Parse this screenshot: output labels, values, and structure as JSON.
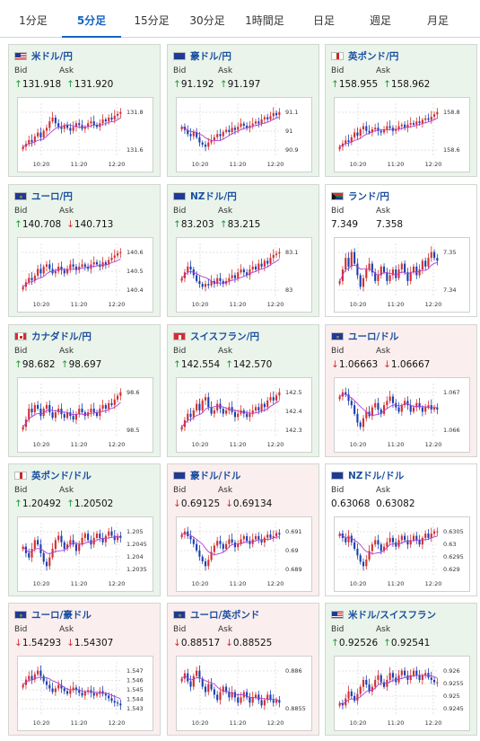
{
  "tabs": [
    "1分足",
    "5分足",
    "15分足",
    "30分足",
    "1時間足",
    "日足",
    "週足",
    "月足"
  ],
  "active_tab": 1,
  "labels": {
    "bid": "Bid",
    "ask": "Ask"
  },
  "colors": {
    "up_bg": "#eaf4ea",
    "down_bg": "#fbeeee",
    "up_arrow": "#1e9a3a",
    "down_arrow": "#d32f2f",
    "candle_up": "#d32f2f",
    "candle_down": "#1a3fb0",
    "ma": "#b23bd6"
  },
  "pairs": [
    {
      "name": "米ドル/円",
      "flag": "us",
      "trend": "up",
      "bid": "131.918",
      "ask": "131.920",
      "bid_dir": "up",
      "ask_dir": "up",
      "chart_data": {
        "type": "candlestick",
        "x_ticks": [
          "10:20",
          "11:20",
          "12:20"
        ],
        "y_ticks": [
          "131.8",
          "131.6"
        ],
        "closes": [
          131.55,
          131.58,
          131.62,
          131.6,
          131.66,
          131.7,
          131.65,
          131.72,
          131.75,
          131.82,
          131.86,
          131.8,
          131.76,
          131.74,
          131.78,
          131.75,
          131.72,
          131.76,
          131.8,
          131.78,
          131.74,
          131.76,
          131.8,
          131.82,
          131.78,
          131.76,
          131.8,
          131.84,
          131.82,
          131.86,
          131.84,
          131.88,
          131.9,
          131.92
        ]
      }
    },
    {
      "name": "豪ドル/円",
      "flag": "au",
      "trend": "up",
      "bid": "91.192",
      "ask": "91.197",
      "bid_dir": "up",
      "ask_dir": "up",
      "chart_data": {
        "type": "candlestick",
        "x_ticks": [
          "10:20",
          "11:20",
          "12:20"
        ],
        "y_ticks": [
          "91.1",
          "91",
          "90.9"
        ],
        "closes": [
          91.05,
          91.02,
          90.98,
          90.96,
          91.0,
          90.95,
          90.9,
          90.88,
          90.86,
          90.9,
          90.92,
          90.95,
          90.98,
          90.96,
          91.0,
          91.02,
          91.0,
          91.04,
          91.02,
          91.05,
          91.08,
          91.06,
          91.04,
          91.06,
          91.08,
          91.1,
          91.08,
          91.12,
          91.14,
          91.12,
          91.15,
          91.18,
          91.16,
          91.19
        ]
      }
    },
    {
      "name": "英ポンド/円",
      "flag": "gb",
      "trend": "up",
      "bid": "158.955",
      "ask": "158.962",
      "bid_dir": "up",
      "ask_dir": "up",
      "chart_data": {
        "type": "candlestick",
        "x_ticks": [
          "10:20",
          "11:20",
          "12:20"
        ],
        "y_ticks": [
          "158.8",
          "158.6"
        ],
        "closes": [
          158.52,
          158.56,
          158.6,
          158.58,
          158.64,
          158.7,
          158.66,
          158.74,
          158.78,
          158.72,
          158.7,
          158.74,
          158.76,
          158.72,
          158.7,
          158.74,
          158.78,
          158.76,
          158.72,
          158.74,
          158.78,
          158.8,
          158.76,
          158.8,
          158.82,
          158.8,
          158.84,
          158.82,
          158.86,
          158.88,
          158.86,
          158.9,
          158.93,
          158.96
        ]
      }
    },
    {
      "name": "ユーロ/円",
      "flag": "eu",
      "trend": "up",
      "bid": "140.708",
      "ask": "140.713",
      "bid_dir": "up",
      "ask_dir": "down",
      "chart_data": {
        "type": "candlestick",
        "x_ticks": [
          "10:20",
          "11:20",
          "12:20"
        ],
        "y_ticks": [
          "140.6",
          "140.5",
          "140.4"
        ],
        "closes": [
          140.4,
          140.44,
          140.48,
          140.46,
          140.5,
          140.56,
          140.52,
          140.58,
          140.6,
          140.56,
          140.52,
          140.54,
          140.58,
          140.55,
          140.52,
          140.56,
          140.6,
          140.58,
          140.55,
          140.58,
          140.6,
          140.58,
          140.56,
          140.6,
          140.62,
          140.6,
          140.58,
          140.62,
          140.6,
          140.64,
          140.66,
          140.68,
          140.7,
          140.71
        ]
      }
    },
    {
      "name": "NZドル/円",
      "flag": "nz",
      "trend": "up",
      "bid": "83.203",
      "ask": "83.215",
      "bid_dir": "up",
      "ask_dir": "up",
      "chart_data": {
        "type": "candlestick",
        "x_ticks": [
          "10:20",
          "11:20",
          "12:20"
        ],
        "y_ticks": [
          "83.1",
          "83"
        ],
        "closes": [
          83.02,
          83.06,
          83.1,
          83.08,
          83.04,
          83.0,
          82.98,
          82.96,
          82.98,
          82.97,
          83.0,
          82.98,
          83.02,
          83.0,
          82.98,
          83.0,
          83.02,
          83.04,
          83.02,
          83.06,
          83.08,
          83.06,
          83.04,
          83.08,
          83.1,
          83.08,
          83.12,
          83.1,
          83.14,
          83.12,
          83.16,
          83.18,
          83.19,
          83.2
        ]
      }
    },
    {
      "name": "ランド/円",
      "flag": "za",
      "trend": "flat",
      "bid": "7.349",
      "ask": "7.358",
      "bid_dir": "none",
      "ask_dir": "none",
      "chart_data": {
        "type": "candlestick",
        "x_ticks": [
          "10:20",
          "11:20",
          "12:20"
        ],
        "y_ticks": [
          "7.35",
          "7.34"
        ],
        "closes": [
          7.342,
          7.346,
          7.35,
          7.347,
          7.352,
          7.348,
          7.344,
          7.34,
          7.343,
          7.346,
          7.348,
          7.345,
          7.342,
          7.344,
          7.347,
          7.345,
          7.342,
          7.344,
          7.346,
          7.343,
          7.346,
          7.348,
          7.345,
          7.342,
          7.345,
          7.347,
          7.344,
          7.346,
          7.349,
          7.347,
          7.35,
          7.352,
          7.35,
          7.349
        ]
      }
    },
    {
      "name": "カナダドル/円",
      "flag": "ca",
      "trend": "up",
      "bid": "98.682",
      "ask": "98.697",
      "bid_dir": "up",
      "ask_dir": "up",
      "chart_data": {
        "type": "candlestick",
        "x_ticks": [
          "10:20",
          "11:20",
          "12:20"
        ],
        "y_ticks": [
          "98.6",
          "98.5"
        ],
        "closes": [
          98.5,
          98.54,
          98.6,
          98.58,
          98.62,
          98.6,
          98.56,
          98.6,
          98.62,
          98.58,
          98.55,
          98.58,
          98.6,
          98.57,
          98.55,
          98.58,
          98.56,
          98.54,
          98.57,
          98.6,
          98.58,
          98.56,
          98.58,
          98.6,
          98.58,
          98.56,
          98.6,
          98.62,
          98.6,
          98.63,
          98.62,
          98.65,
          98.67,
          98.69
        ]
      }
    },
    {
      "name": "スイスフラン/円",
      "flag": "ch",
      "trend": "up",
      "bid": "142.554",
      "ask": "142.570",
      "bid_dir": "up",
      "ask_dir": "up",
      "chart_data": {
        "type": "candlestick",
        "x_ticks": [
          "10:20",
          "11:20",
          "12:20"
        ],
        "y_ticks": [
          "142.5",
          "142.4",
          "142.3"
        ],
        "closes": [
          142.34,
          142.38,
          142.42,
          142.4,
          142.44,
          142.48,
          142.44,
          142.5,
          142.52,
          142.46,
          142.42,
          142.44,
          142.48,
          142.45,
          142.42,
          142.44,
          142.46,
          142.43,
          142.4,
          142.42,
          142.44,
          142.42,
          142.4,
          142.42,
          142.44,
          142.46,
          142.44,
          142.48,
          142.46,
          142.5,
          142.52,
          142.5,
          142.53,
          142.55
        ]
      }
    },
    {
      "name": "ユーロ/ドル",
      "flag": "eu",
      "trend": "down",
      "bid": "1.06663",
      "ask": "1.06667",
      "bid_dir": "down",
      "ask_dir": "down",
      "chart_data": {
        "type": "candlestick",
        "x_ticks": [
          "10:20",
          "11:20",
          "12:20"
        ],
        "y_ticks": [
          "1.067",
          "1.066"
        ],
        "closes": [
          1.0672,
          1.0674,
          1.0673,
          1.067,
          1.0668,
          1.0664,
          1.066,
          1.0658,
          1.0662,
          1.0665,
          1.0663,
          1.0667,
          1.0669,
          1.0666,
          1.0664,
          1.0668,
          1.067,
          1.0672,
          1.0669,
          1.0667,
          1.0665,
          1.0668,
          1.067,
          1.0668,
          1.0665,
          1.0667,
          1.0669,
          1.0667,
          1.0665,
          1.0667,
          1.0668,
          1.0666,
          1.0667,
          1.0666
        ]
      }
    },
    {
      "name": "英ポンド/ドル",
      "flag": "gb",
      "trend": "up",
      "bid": "1.20492",
      "ask": "1.20502",
      "bid_dir": "up",
      "ask_dir": "up",
      "chart_data": {
        "type": "candlestick",
        "x_ticks": [
          "10:20",
          "11:20",
          "12:20"
        ],
        "y_ticks": [
          "1.205",
          "1.2045",
          "1.204",
          "1.2035"
        ],
        "closes": [
          1.2045,
          1.2042,
          1.204,
          1.2044,
          1.2048,
          1.2046,
          1.2042,
          1.2038,
          1.2036,
          1.204,
          1.2044,
          1.2048,
          1.205,
          1.2047,
          1.2044,
          1.2046,
          1.2048,
          1.2046,
          1.2043,
          1.2046,
          1.2049,
          1.2051,
          1.2048,
          1.2046,
          1.2049,
          1.2051,
          1.2049,
          1.2047,
          1.205,
          1.2052,
          1.205,
          1.2048,
          1.205,
          1.2049
        ]
      }
    },
    {
      "name": "豪ドル/ドル",
      "flag": "au",
      "trend": "down",
      "bid": "0.69125",
      "ask": "0.69134",
      "bid_dir": "down",
      "ask_dir": "down",
      "chart_data": {
        "type": "candlestick",
        "x_ticks": [
          "10:20",
          "11:20",
          "12:20"
        ],
        "y_ticks": [
          "0.691",
          "0.69",
          "0.689"
        ],
        "closes": [
          0.6912,
          0.6914,
          0.6911,
          0.6909,
          0.6906,
          0.6902,
          0.6898,
          0.6895,
          0.6892,
          0.6896,
          0.6901,
          0.6905,
          0.6908,
          0.6906,
          0.6903,
          0.6906,
          0.6909,
          0.6907,
          0.6904,
          0.6906,
          0.6909,
          0.6911,
          0.6908,
          0.6906,
          0.6909,
          0.6911,
          0.6909,
          0.6907,
          0.691,
          0.6912,
          0.691,
          0.6911,
          0.6913,
          0.6912
        ]
      }
    },
    {
      "name": "NZドル/ドル",
      "flag": "nz",
      "trend": "flat",
      "bid": "0.63068",
      "ask": "0.63082",
      "bid_dir": "none",
      "ask_dir": "none",
      "chart_data": {
        "type": "candlestick",
        "x_ticks": [
          "10:20",
          "11:20",
          "12:20"
        ],
        "y_ticks": [
          "0.6305",
          "0.63",
          "0.6295",
          "0.629"
        ],
        "closes": [
          0.6306,
          0.6304,
          0.6302,
          0.6305,
          0.6302,
          0.6299,
          0.6296,
          0.6293,
          0.6291,
          0.6294,
          0.6298,
          0.6301,
          0.6303,
          0.6301,
          0.6298,
          0.63,
          0.6302,
          0.6304,
          0.6302,
          0.63,
          0.6303,
          0.6305,
          0.6303,
          0.6301,
          0.6303,
          0.6305,
          0.6303,
          0.6301,
          0.6304,
          0.6306,
          0.6304,
          0.6306,
          0.6307,
          0.6307
        ]
      }
    },
    {
      "name": "ユーロ/豪ドル",
      "flag": "eu",
      "trend": "down",
      "bid": "1.54293",
      "ask": "1.54307",
      "bid_dir": "down",
      "ask_dir": "down",
      "chart_data": {
        "type": "candlestick",
        "x_ticks": [
          "10:20",
          "11:20",
          "12:20"
        ],
        "y_ticks": [
          "1.547",
          "1.546",
          "1.545",
          "1.544",
          "1.543"
        ],
        "closes": [
          1.5452,
          1.5458,
          1.5462,
          1.5458,
          1.5464,
          1.5468,
          1.5462,
          1.5456,
          1.5452,
          1.5448,
          1.5444,
          1.5448,
          1.5452,
          1.5448,
          1.5445,
          1.5442,
          1.5446,
          1.5449,
          1.5446,
          1.5443,
          1.544,
          1.5444,
          1.5446,
          1.5443,
          1.544,
          1.5442,
          1.5445,
          1.5442,
          1.544,
          1.5437,
          1.5434,
          1.5432,
          1.5431,
          1.5429
        ]
      }
    },
    {
      "name": "ユーロ/英ポンド",
      "flag": "eu",
      "trend": "down",
      "bid": "0.88517",
      "ask": "0.88525",
      "bid_dir": "down",
      "ask_dir": "down",
      "chart_data": {
        "type": "candlestick",
        "x_ticks": [
          "10:20",
          "11:20",
          "12:20"
        ],
        "y_ticks": [
          "0.886",
          "0.8855"
        ],
        "closes": [
          0.8861,
          0.8863,
          0.886,
          0.8858,
          0.8862,
          0.8864,
          0.8861,
          0.8858,
          0.8856,
          0.8859,
          0.8857,
          0.8855,
          0.8853,
          0.8856,
          0.8858,
          0.8856,
          0.8854,
          0.8856,
          0.8854,
          0.8852,
          0.8854,
          0.8856,
          0.8854,
          0.8852,
          0.8854,
          0.8855,
          0.8853,
          0.8851,
          0.8853,
          0.8855,
          0.8853,
          0.8852,
          0.8853,
          0.8852
        ]
      }
    },
    {
      "name": "米ドル/スイスフラン",
      "flag": "us",
      "trend": "up",
      "bid": "0.92526",
      "ask": "0.92541",
      "bid_dir": "up",
      "ask_dir": "up",
      "chart_data": {
        "type": "candlestick",
        "x_ticks": [
          "10:20",
          "11:20",
          "12:20"
        ],
        "y_ticks": [
          "0.926",
          "0.9255",
          "0.925",
          "0.9245"
        ],
        "closes": [
          0.9244,
          0.9243,
          0.9246,
          0.9249,
          0.9247,
          0.9245,
          0.9248,
          0.9251,
          0.9254,
          0.9252,
          0.9249,
          0.9251,
          0.9254,
          0.9256,
          0.9253,
          0.9251,
          0.9254,
          0.9257,
          0.9255,
          0.9253,
          0.9256,
          0.9258,
          0.9256,
          0.9254,
          0.9256,
          0.9258,
          0.9256,
          0.9254,
          0.9256,
          0.9257,
          0.9255,
          0.9254,
          0.9253,
          0.9253
        ]
      }
    }
  ]
}
